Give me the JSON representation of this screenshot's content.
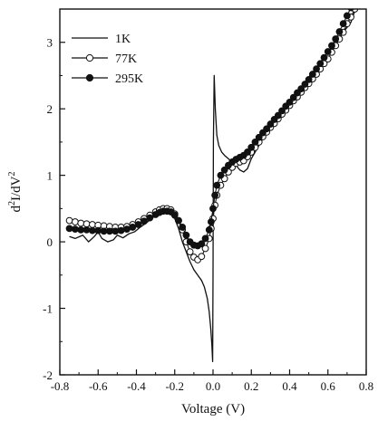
{
  "chart_data": {
    "type": "line",
    "xlabel": "Voltage (V)",
    "ylabel_main": "d",
    "ylabel_sup1": "2",
    "ylabel_mid": "I/dV",
    "ylabel_sup2": "2",
    "xlim": [
      -0.8,
      0.8
    ],
    "ylim": [
      -2,
      3.5
    ],
    "x_ticks": [
      -0.8,
      -0.6,
      -0.4,
      -0.2,
      0.0,
      0.2,
      0.4,
      0.6,
      0.8
    ],
    "x_tick_labels": [
      "-0.8",
      "-0.6",
      "-0.4",
      "-0.2",
      "0.0",
      "0.2",
      "0.4",
      "0.6",
      "0.8"
    ],
    "y_ticks": [
      -2,
      -1,
      0,
      1,
      2,
      3
    ],
    "y_tick_labels": [
      "-2",
      "-1",
      "0",
      "1",
      "2",
      "3"
    ],
    "legend_position": "top-left",
    "grid": false,
    "series": [
      {
        "name": "1K",
        "marker": "none",
        "color": "#111111",
        "x": [
          -0.75,
          -0.72,
          -0.68,
          -0.65,
          -0.62,
          -0.6,
          -0.58,
          -0.55,
          -0.52,
          -0.5,
          -0.47,
          -0.44,
          -0.41,
          -0.38,
          -0.35,
          -0.32,
          -0.29,
          -0.26,
          -0.23,
          -0.2,
          -0.18,
          -0.16,
          -0.14,
          -0.12,
          -0.1,
          -0.08,
          -0.06,
          -0.045,
          -0.03,
          -0.02,
          -0.012,
          -0.006,
          -0.002,
          0.0,
          0.002,
          0.006,
          0.012,
          0.02,
          0.03,
          0.045,
          0.06,
          0.08,
          0.1,
          0.12,
          0.14,
          0.16,
          0.18,
          0.2,
          0.24,
          0.28,
          0.32,
          0.36,
          0.4,
          0.44,
          0.48,
          0.52,
          0.56,
          0.6,
          0.64,
          0.68,
          0.72,
          0.75
        ],
        "y": [
          0.08,
          0.05,
          0.1,
          0.0,
          0.08,
          0.15,
          0.05,
          0.0,
          0.03,
          0.1,
          0.06,
          0.12,
          0.15,
          0.22,
          0.28,
          0.35,
          0.42,
          0.45,
          0.45,
          0.35,
          0.2,
          0.0,
          -0.15,
          -0.3,
          -0.42,
          -0.5,
          -0.58,
          -0.68,
          -0.85,
          -1.05,
          -1.3,
          -1.55,
          -1.8,
          -0.5,
          1.5,
          2.5,
          2.0,
          1.6,
          1.45,
          1.35,
          1.3,
          1.25,
          1.2,
          1.15,
          1.08,
          1.05,
          1.1,
          1.25,
          1.45,
          1.65,
          1.8,
          1.95,
          2.1,
          2.25,
          2.4,
          2.55,
          2.7,
          2.85,
          3.0,
          3.15,
          3.3,
          3.55
        ]
      },
      {
        "name": "77K",
        "marker": "open",
        "color": "#111111",
        "x": [
          -0.75,
          -0.72,
          -0.69,
          -0.66,
          -0.63,
          -0.6,
          -0.57,
          -0.54,
          -0.51,
          -0.48,
          -0.45,
          -0.42,
          -0.39,
          -0.36,
          -0.33,
          -0.3,
          -0.28,
          -0.26,
          -0.24,
          -0.22,
          -0.2,
          -0.18,
          -0.16,
          -0.14,
          -0.12,
          -0.1,
          -0.08,
          -0.06,
          -0.04,
          -0.02,
          -0.01,
          0.0,
          0.01,
          0.02,
          0.04,
          0.06,
          0.08,
          0.1,
          0.12,
          0.14,
          0.16,
          0.18,
          0.2,
          0.22,
          0.24,
          0.26,
          0.28,
          0.3,
          0.32,
          0.34,
          0.36,
          0.38,
          0.4,
          0.42,
          0.44,
          0.46,
          0.48,
          0.5,
          0.52,
          0.54,
          0.56,
          0.58,
          0.6,
          0.62,
          0.64,
          0.66,
          0.68,
          0.7,
          0.72,
          0.74
        ],
        "y": [
          0.32,
          0.3,
          0.28,
          0.27,
          0.26,
          0.25,
          0.24,
          0.23,
          0.22,
          0.22,
          0.23,
          0.26,
          0.3,
          0.35,
          0.4,
          0.45,
          0.48,
          0.5,
          0.5,
          0.48,
          0.42,
          0.32,
          0.18,
          0.0,
          -0.15,
          -0.23,
          -0.27,
          -0.22,
          -0.1,
          0.05,
          0.2,
          0.35,
          0.55,
          0.7,
          0.85,
          0.95,
          1.05,
          1.12,
          1.18,
          1.2,
          1.22,
          1.28,
          1.35,
          1.42,
          1.5,
          1.58,
          1.65,
          1.72,
          1.78,
          1.85,
          1.92,
          1.98,
          2.05,
          2.12,
          2.18,
          2.25,
          2.32,
          2.38,
          2.45,
          2.52,
          2.6,
          2.68,
          2.75,
          2.85,
          2.95,
          3.05,
          3.15,
          3.28,
          3.38,
          3.5
        ]
      },
      {
        "name": "295K",
        "marker": "filled",
        "color": "#111111",
        "x": [
          -0.75,
          -0.72,
          -0.69,
          -0.66,
          -0.63,
          -0.6,
          -0.57,
          -0.54,
          -0.51,
          -0.48,
          -0.45,
          -0.42,
          -0.39,
          -0.36,
          -0.33,
          -0.3,
          -0.28,
          -0.26,
          -0.24,
          -0.22,
          -0.2,
          -0.18,
          -0.16,
          -0.14,
          -0.12,
          -0.1,
          -0.08,
          -0.06,
          -0.04,
          -0.02,
          -0.01,
          0.0,
          0.01,
          0.02,
          0.04,
          0.06,
          0.08,
          0.1,
          0.12,
          0.14,
          0.16,
          0.18,
          0.2,
          0.22,
          0.24,
          0.26,
          0.28,
          0.3,
          0.32,
          0.34,
          0.36,
          0.38,
          0.4,
          0.42,
          0.44,
          0.46,
          0.48,
          0.5,
          0.52,
          0.54,
          0.56,
          0.58,
          0.6,
          0.62,
          0.64,
          0.66,
          0.68,
          0.7,
          0.72
        ],
        "y": [
          0.2,
          0.19,
          0.18,
          0.18,
          0.17,
          0.17,
          0.16,
          0.16,
          0.16,
          0.17,
          0.19,
          0.22,
          0.26,
          0.31,
          0.36,
          0.41,
          0.44,
          0.46,
          0.46,
          0.45,
          0.4,
          0.32,
          0.22,
          0.1,
          0.0,
          -0.05,
          -0.06,
          -0.03,
          0.05,
          0.18,
          0.3,
          0.5,
          0.7,
          0.85,
          1.0,
          1.08,
          1.15,
          1.2,
          1.24,
          1.27,
          1.3,
          1.35,
          1.42,
          1.5,
          1.57,
          1.64,
          1.7,
          1.77,
          1.84,
          1.9,
          1.97,
          2.04,
          2.1,
          2.17,
          2.24,
          2.3,
          2.37,
          2.44,
          2.52,
          2.6,
          2.68,
          2.77,
          2.86,
          2.95,
          3.05,
          3.16,
          3.28,
          3.4,
          3.52
        ]
      }
    ]
  }
}
